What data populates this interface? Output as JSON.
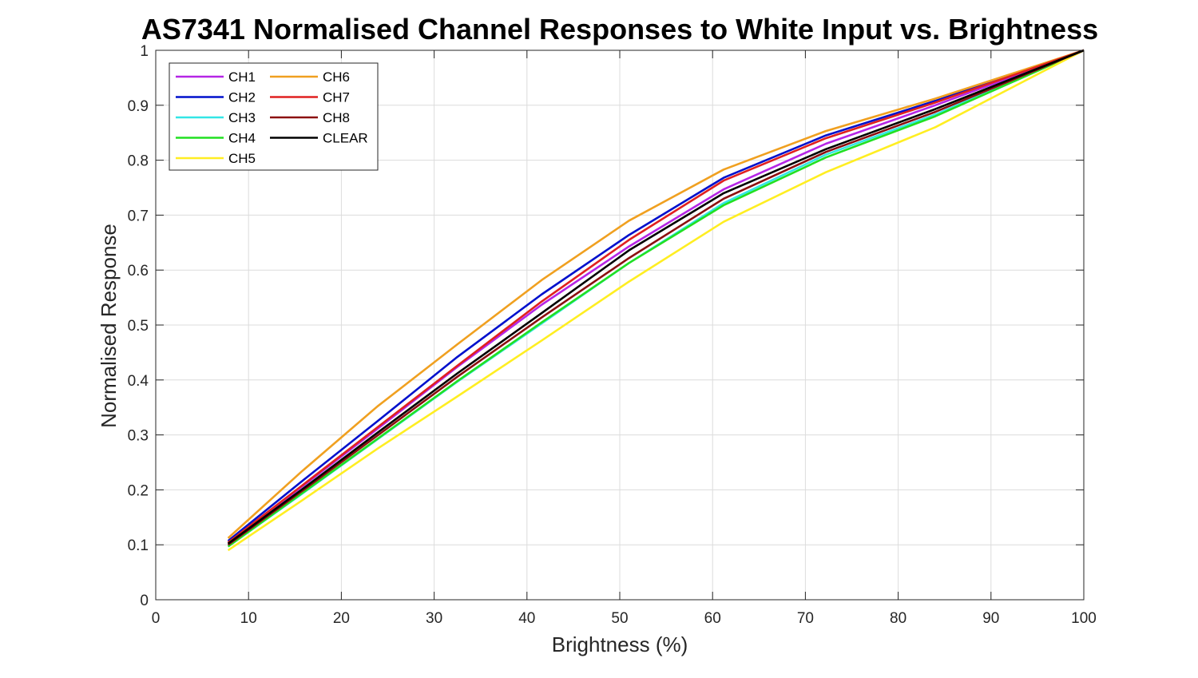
{
  "chart_data": {
    "type": "line",
    "title": "AS7341 Normalised Channel Responses to White Input vs. Brightness",
    "xlabel": "Brightness (%)",
    "ylabel": "Normalised Response",
    "xlim": [
      0,
      100
    ],
    "ylim": [
      0,
      1
    ],
    "xticks": [
      0,
      10,
      20,
      30,
      40,
      50,
      60,
      70,
      80,
      90,
      100
    ],
    "yticks": [
      0,
      0.1,
      0.2,
      0.3,
      0.4,
      0.5,
      0.6,
      0.7,
      0.8,
      0.9,
      1
    ],
    "xtick_labels": [
      "0",
      "10",
      "20",
      "30",
      "40",
      "50",
      "60",
      "70",
      "80",
      "90",
      "100"
    ],
    "ytick_labels": [
      "0",
      "0.1",
      "0.2",
      "0.3",
      "0.4",
      "0.5",
      "0.6",
      "0.7",
      "0.8",
      "0.9",
      "1"
    ],
    "grid": true,
    "legend_position": "top-left",
    "legend_columns": 2,
    "x": [
      7.8,
      15.7,
      23.9,
      32.5,
      41.6,
      51.0,
      61.2,
      72.2,
      84.0,
      100
    ],
    "series": [
      {
        "name": "CH1",
        "color": "#b526e6",
        "values": [
          0.104,
          0.205,
          0.311,
          0.424,
          0.537,
          0.643,
          0.747,
          0.83,
          0.9,
          1.0
        ]
      },
      {
        "name": "CH2",
        "color": "#0010cc",
        "values": [
          0.107,
          0.215,
          0.325,
          0.442,
          0.556,
          0.664,
          0.768,
          0.845,
          0.908,
          1.0
        ]
      },
      {
        "name": "CH3",
        "color": "#33e6e6",
        "values": [
          0.097,
          0.192,
          0.292,
          0.397,
          0.503,
          0.613,
          0.722,
          0.81,
          0.883,
          1.0
        ]
      },
      {
        "name": "CH4",
        "color": "#22e022",
        "values": [
          0.097,
          0.193,
          0.293,
          0.398,
          0.505,
          0.613,
          0.718,
          0.805,
          0.88,
          1.0
        ]
      },
      {
        "name": "CH5",
        "color": "#ffee22",
        "values": [
          0.09,
          0.18,
          0.275,
          0.37,
          0.472,
          0.579,
          0.688,
          0.778,
          0.86,
          1.0
        ]
      },
      {
        "name": "CH6",
        "color": "#f0a020",
        "values": [
          0.112,
          0.233,
          0.352,
          0.465,
          0.582,
          0.69,
          0.783,
          0.853,
          0.912,
          1.0
        ]
      },
      {
        "name": "CH7",
        "color": "#e02020",
        "values": [
          0.104,
          0.207,
          0.314,
          0.426,
          0.543,
          0.655,
          0.763,
          0.84,
          0.905,
          1.0
        ]
      },
      {
        "name": "CH8",
        "color": "#8b1010",
        "values": [
          0.1,
          0.197,
          0.299,
          0.406,
          0.514,
          0.622,
          0.73,
          0.815,
          0.888,
          1.0
        ]
      },
      {
        "name": "CLEAR",
        "color": "#000000",
        "values": [
          0.102,
          0.2,
          0.304,
          0.412,
          0.522,
          0.636,
          0.74,
          0.82,
          0.893,
          1.0
        ]
      }
    ]
  }
}
